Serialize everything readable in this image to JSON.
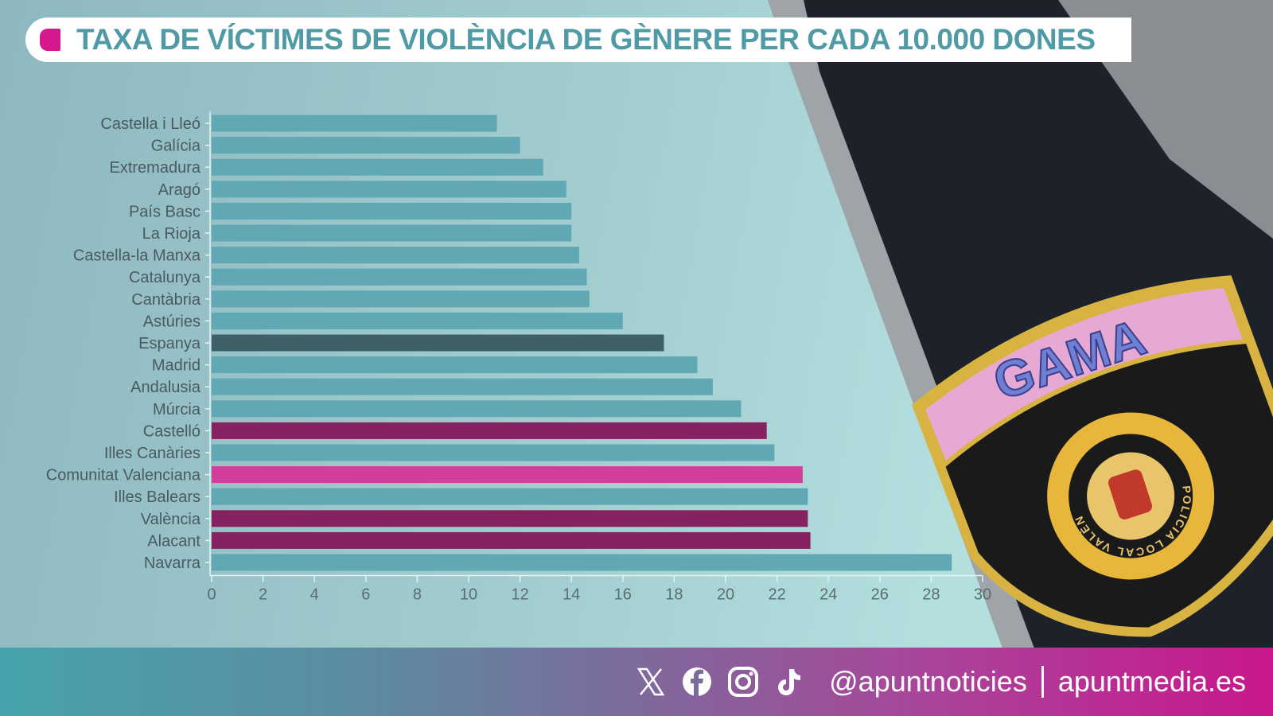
{
  "title": "TAXA DE VÍCTIMES DE VIOLÈNCIA DE GÈNERE PER CADA 10.000 DONES",
  "badge_text": "GAMA",
  "badge_seal_text": "POLICIA LOCAL VALÈNCIA",
  "footer": {
    "icons": [
      "x-icon",
      "facebook-icon",
      "instagram-icon",
      "tiktok-icon"
    ],
    "handle": "@apuntnoticies",
    "site": "apuntmedia.es"
  },
  "colors": {
    "default": "#5fa8b4",
    "spain": "#3e6168",
    "province": "#86225f",
    "community": "#d63c9b",
    "accent": "#d3198d"
  },
  "chart_data": {
    "type": "bar",
    "orientation": "horizontal",
    "title": "TAXA DE VÍCTIMES DE VIOLÈNCIA DE GÈNERE PER CADA 10.000 DONES",
    "xlim": [
      0,
      30
    ],
    "xticks": [
      0,
      2,
      4,
      6,
      8,
      10,
      12,
      14,
      16,
      18,
      20,
      22,
      24,
      26,
      28,
      30
    ],
    "grid": false,
    "categories": [
      "Castella i Lleó",
      "Galícia",
      "Extremadura",
      "Aragó",
      "País Basc",
      "La Rioja",
      "Castella-la Manxa",
      "Catalunya",
      "Cantàbria",
      "Astúries",
      "Espanya",
      "Madrid",
      "Andalusia",
      "Múrcia",
      "Castelló",
      "Illes Canàries",
      "Comunitat Valenciana",
      "Illes Balears",
      "València",
      "Alacant",
      "Navarra"
    ],
    "values": [
      11.1,
      12.0,
      12.9,
      13.8,
      14.0,
      14.0,
      14.3,
      14.6,
      14.7,
      16.0,
      17.6,
      18.9,
      19.5,
      20.6,
      21.6,
      21.9,
      23.0,
      23.2,
      23.2,
      23.3,
      28.8
    ],
    "bar_color_keys": [
      "default",
      "default",
      "default",
      "default",
      "default",
      "default",
      "default",
      "default",
      "default",
      "default",
      "spain",
      "default",
      "default",
      "default",
      "province",
      "default",
      "community",
      "default",
      "province",
      "province",
      "default"
    ]
  }
}
